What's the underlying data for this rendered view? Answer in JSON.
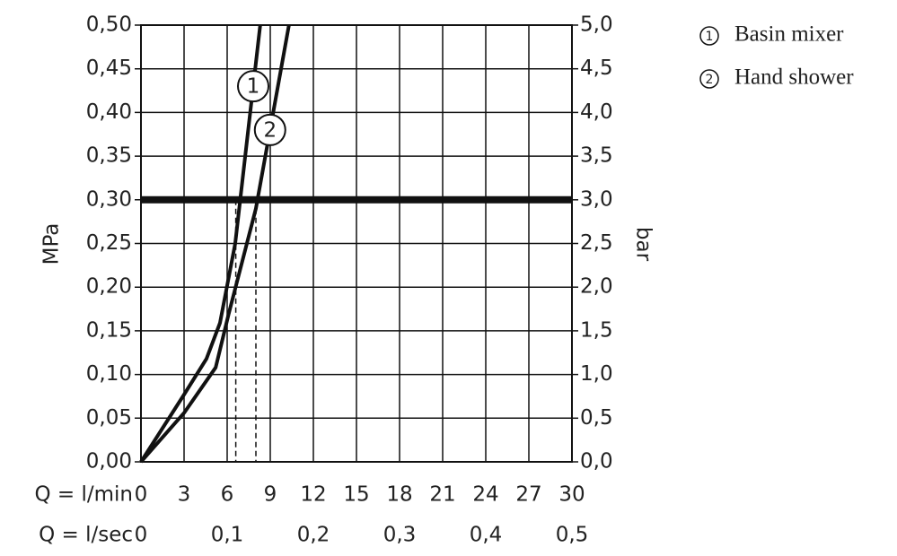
{
  "chart_data": {
    "type": "line",
    "xlabel": "Q = l/min",
    "x2label": "Q = l/sec",
    "ylabel": "MPa",
    "y2label": "bar",
    "xlim": [
      0,
      30
    ],
    "xticks": [
      0,
      3,
      6,
      9,
      12,
      15,
      18,
      21,
      24,
      27,
      30
    ],
    "x2lim": [
      0,
      0.5
    ],
    "x2ticks": [
      0,
      {
        "value": 0.1,
        "label": "0,1"
      },
      {
        "value": 0.2,
        "label": "0,2"
      },
      {
        "value": 0.3,
        "label": "0,3"
      },
      {
        "value": 0.4,
        "label": "0,4"
      },
      {
        "value": 0.5,
        "label": "0,5"
      }
    ],
    "ylim": [
      0,
      0.5
    ],
    "yticks": [
      {
        "value": 0,
        "label": "0,00"
      },
      {
        "value": 0.05,
        "label": "0,05"
      },
      {
        "value": 0.1,
        "label": "0,10"
      },
      {
        "value": 0.15,
        "label": "0,15"
      },
      {
        "value": 0.2,
        "label": "0,20"
      },
      {
        "value": 0.25,
        "label": "0,25"
      },
      {
        "value": 0.3,
        "label": "0,30"
      },
      {
        "value": 0.35,
        "label": "0,35"
      },
      {
        "value": 0.4,
        "label": "0,40"
      },
      {
        "value": 0.45,
        "label": "0,45"
      },
      {
        "value": 0.5,
        "label": "0,50"
      }
    ],
    "y2lim": [
      0,
      5
    ],
    "y2ticks": [
      {
        "value": 0,
        "label": "0,0"
      },
      {
        "value": 0.5,
        "label": "0,5"
      },
      {
        "value": 1,
        "label": "1,0"
      },
      {
        "value": 1.5,
        "label": "1,5"
      },
      {
        "value": 2,
        "label": "2,0"
      },
      {
        "value": 2.5,
        "label": "2,5"
      },
      {
        "value": 3,
        "label": "3,0"
      },
      {
        "value": 3.5,
        "label": "3,5"
      },
      {
        "value": 4,
        "label": "4,0"
      },
      {
        "value": 4.5,
        "label": "4,5"
      },
      {
        "value": 5,
        "label": "5,0"
      }
    ],
    "grid": true,
    "reference_y": 0.3,
    "color": "#111111",
    "series": [
      {
        "name": "Basin mixer",
        "label": "1",
        "x": [
          0,
          3,
          4.56,
          5.5,
          6.56,
          8.3
        ],
        "values": [
          0,
          0.077,
          0.118,
          0.159,
          0.25,
          0.5
        ],
        "reference_x": 6.6
      },
      {
        "name": "Hand shower",
        "label": "2",
        "x": [
          0,
          3,
          5.2,
          6.1,
          8.0,
          10.3
        ],
        "values": [
          0,
          0.056,
          0.108,
          0.169,
          0.29,
          0.5
        ],
        "reference_x": 8.0
      }
    ]
  }
}
